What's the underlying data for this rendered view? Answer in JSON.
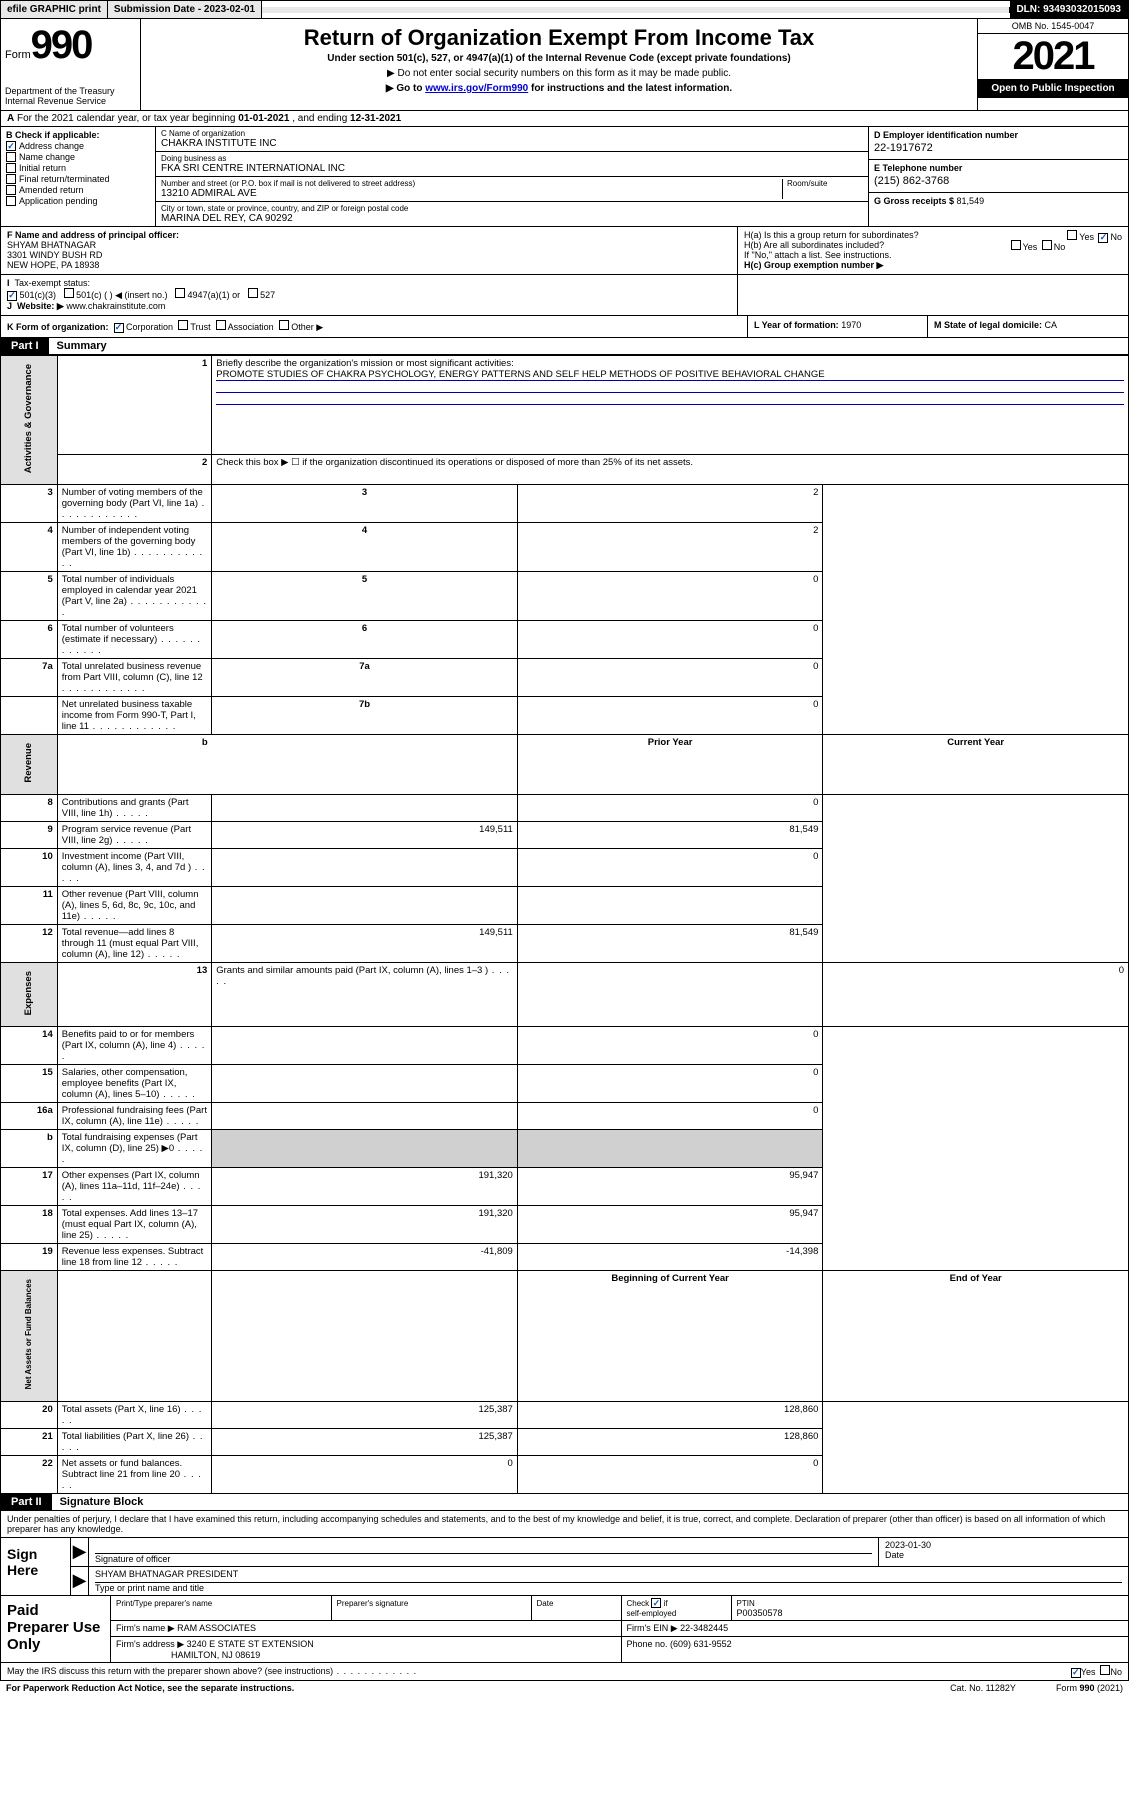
{
  "topbar": {
    "efile": "efile GRAPHIC print",
    "subdate_label": "Submission Date - ",
    "subdate": "2023-02-01",
    "dln_label": "DLN: ",
    "dln": "93493032015093"
  },
  "header": {
    "form_word": "Form",
    "form_num": "990",
    "dept": "Department of the Treasury\nInternal Revenue Service",
    "title": "Return of Organization Exempt From Income Tax",
    "sub": "Under section 501(c), 527, or 4947(a)(1) of the Internal Revenue Code (except private foundations)",
    "note1": "▶ Do not enter social security numbers on this form as it may be made public.",
    "note2_pre": "▶ Go to ",
    "note2_link": "www.irs.gov/Form990",
    "note2_post": " for instructions and the latest information.",
    "omb": "OMB No. 1545-0047",
    "year": "2021",
    "open": "Open to Public Inspection"
  },
  "row_a": {
    "prefix_a": "A",
    "text_pre": " For the 2021 calendar year, or tax year beginning ",
    "begin": "01-01-2021",
    "text_mid": " , and ending ",
    "end": "12-31-2021"
  },
  "col_b": {
    "hdr": "B Check if applicable:",
    "items": [
      {
        "label": "Address change",
        "checked": true
      },
      {
        "label": "Name change",
        "checked": false
      },
      {
        "label": "Initial return",
        "checked": false
      },
      {
        "label": "Final return/terminated",
        "checked": false
      },
      {
        "label": "Amended return",
        "checked": false
      },
      {
        "label": "Application pending",
        "checked": false
      }
    ]
  },
  "col_c": {
    "name_lbl": "C Name of organization",
    "name": "CHAKRA INSTITUTE INC",
    "dba_lbl": "Doing business as",
    "dba": "FKA SRI CENTRE INTERNATIONAL INC",
    "addr_lbl": "Number and street (or P.O. box if mail is not delivered to street address)",
    "addr": "13210 ADMIRAL AVE",
    "room_lbl": "Room/suite",
    "room": "",
    "city_lbl": "City or town, state or province, country, and ZIP or foreign postal code",
    "city": "MARINA DEL REY, CA  90292"
  },
  "col_d": {
    "d_lbl": "D Employer identification number",
    "d_val": "22-1917672",
    "e_lbl": "E Telephone number",
    "e_val": "(215) 862-3768",
    "g_lbl": "G Gross receipts $ ",
    "g_val": "81,549"
  },
  "row_f": {
    "lbl": "F Name and address of principal officer:",
    "name": "SHYAM BHATNAGAR",
    "addr1": "3301 WINDY BUSH RD",
    "addr2": "NEW HOPE, PA  18938"
  },
  "row_h": {
    "ha": "H(a)  Is this a group return for subordinates?",
    "hb": "H(b)  Are all subordinates included?",
    "hb_note": "If \"No,\" attach a list. See instructions.",
    "hc": "H(c)  Group exemption number ▶"
  },
  "row_i": {
    "lbl": "Tax-exempt status:",
    "opts": [
      "501(c)(3)",
      "501(c) (  ) ◀ (insert no.)",
      "4947(a)(1) or",
      "527"
    ]
  },
  "row_j": {
    "lbl": "Website: ▶",
    "val": "www.chakrainstitute.com"
  },
  "row_k": {
    "k1_lbl": "K Form of organization:",
    "k1_opts": [
      "Corporation",
      "Trust",
      "Association",
      "Other ▶"
    ],
    "k2_lbl": "L Year of formation: ",
    "k2_val": "1970",
    "k3_lbl": "M State of legal domicile: ",
    "k3_val": "CA"
  },
  "parts": {
    "p1": "Part I",
    "p1_title": "Summary",
    "p2": "Part II",
    "p2_title": "Signature Block"
  },
  "summary": {
    "side1": "Activities & Governance",
    "side2": "Revenue",
    "side3": "Expenses",
    "side4": "Net Assets or Fund Balances",
    "l1_lbl": "Briefly describe the organization's mission or most significant activities:",
    "l1_val": "PROMOTE STUDIES OF CHAKRA PSYCHOLOGY, ENERGY PATTERNS AND SELF HELP METHODS OF POSITIVE BEHAVIORAL CHANGE",
    "l2": "Check this box ▶ ☐  if the organization discontinued its operations or disposed of more than 25% of its net assets.",
    "rows_a": [
      {
        "n": "3",
        "d": "Number of voting members of the governing body (Part VI, line 1a)",
        "k": "3",
        "v": "2"
      },
      {
        "n": "4",
        "d": "Number of independent voting members of the governing body (Part VI, line 1b)",
        "k": "4",
        "v": "2"
      },
      {
        "n": "5",
        "d": "Total number of individuals employed in calendar year 2021 (Part V, line 2a)",
        "k": "5",
        "v": "0"
      },
      {
        "n": "6",
        "d": "Total number of volunteers (estimate if necessary)",
        "k": "6",
        "v": "0"
      },
      {
        "n": "7a",
        "d": "Total unrelated business revenue from Part VIII, column (C), line 12",
        "k": "7a",
        "v": "0"
      },
      {
        "n": "",
        "d": "Net unrelated business taxable income from Form 990-T, Part I, line 11",
        "k": "7b",
        "v": "0"
      }
    ],
    "col_prior": "Prior Year",
    "col_curr": "Current Year",
    "col_begin": "Beginning of Current Year",
    "col_end": "End of Year",
    "rows_rev": [
      {
        "n": "8",
        "d": "Contributions and grants (Part VIII, line 1h)",
        "p": "",
        "c": "0"
      },
      {
        "n": "9",
        "d": "Program service revenue (Part VIII, line 2g)",
        "p": "149,511",
        "c": "81,549"
      },
      {
        "n": "10",
        "d": "Investment income (Part VIII, column (A), lines 3, 4, and 7d )",
        "p": "",
        "c": "0"
      },
      {
        "n": "11",
        "d": "Other revenue (Part VIII, column (A), lines 5, 6d, 8c, 9c, 10c, and 11e)",
        "p": "",
        "c": ""
      },
      {
        "n": "12",
        "d": "Total revenue—add lines 8 through 11 (must equal Part VIII, column (A), line 12)",
        "p": "149,511",
        "c": "81,549"
      }
    ],
    "rows_exp": [
      {
        "n": "13",
        "d": "Grants and similar amounts paid (Part IX, column (A), lines 1–3 )",
        "p": "",
        "c": "0"
      },
      {
        "n": "14",
        "d": "Benefits paid to or for members (Part IX, column (A), line 4)",
        "p": "",
        "c": "0"
      },
      {
        "n": "15",
        "d": "Salaries, other compensation, employee benefits (Part IX, column (A), lines 5–10)",
        "p": "",
        "c": "0"
      },
      {
        "n": "16a",
        "d": "Professional fundraising fees (Part IX, column (A), line 11e)",
        "p": "",
        "c": "0"
      },
      {
        "n": "b",
        "d": "Total fundraising expenses (Part IX, column (D), line 25) ▶0",
        "p": "BLANK",
        "c": "BLANK"
      },
      {
        "n": "17",
        "d": "Other expenses (Part IX, column (A), lines 11a–11d, 11f–24e)",
        "p": "191,320",
        "c": "95,947"
      },
      {
        "n": "18",
        "d": "Total expenses. Add lines 13–17 (must equal Part IX, column (A), line 25)",
        "p": "191,320",
        "c": "95,947"
      },
      {
        "n": "19",
        "d": "Revenue less expenses. Subtract line 18 from line 12",
        "p": "-41,809",
        "c": "-14,398"
      }
    ],
    "rows_net": [
      {
        "n": "20",
        "d": "Total assets (Part X, line 16)",
        "p": "125,387",
        "c": "128,860"
      },
      {
        "n": "21",
        "d": "Total liabilities (Part X, line 26)",
        "p": "125,387",
        "c": "128,860"
      },
      {
        "n": "22",
        "d": "Net assets or fund balances. Subtract line 21 from line 20",
        "p": "0",
        "c": "0"
      }
    ]
  },
  "sig": {
    "intro": "Under penalties of perjury, I declare that I have examined this return, including accompanying schedules and statements, and to the best of my knowledge and belief, it is true, correct, and complete. Declaration of preparer (other than officer) is based on all information of which preparer has any knowledge.",
    "sign_here": "Sign Here",
    "sig_officer_lbl": "Signature of officer",
    "date_lbl": "Date",
    "date_val": "2023-01-30",
    "name_title": "SHYAM BHATNAGAR PRESIDENT",
    "name_title_lbl": "Type or print name and title"
  },
  "paid": {
    "lab": "Paid Preparer Use Only",
    "c1": "Print/Type preparer's name",
    "c2": "Preparer's signature",
    "c3": "Date",
    "c4": "Check ☑ if self-employed",
    "c5_lbl": "PTIN",
    "c5_val": "P00350578",
    "firm_lbl": "Firm's name    ▶ ",
    "firm": "RAM ASSOCIATES",
    "ein_lbl": "Firm's EIN ▶ ",
    "ein": "22-3482445",
    "addr_lbl": "Firm's address ▶ ",
    "addr1": "3240 E STATE ST EXTENSION",
    "addr2": "HAMILTON, NJ  08619",
    "phone_lbl": "Phone no. ",
    "phone": "(609) 631-9552"
  },
  "footer": {
    "discuss": "May the IRS discuss this return with the preparer shown above? (see instructions)",
    "paperwork": "For Paperwork Reduction Act Notice, see the separate instructions.",
    "cat": "Cat. No. 11282Y",
    "form": "Form 990 (2021)"
  }
}
